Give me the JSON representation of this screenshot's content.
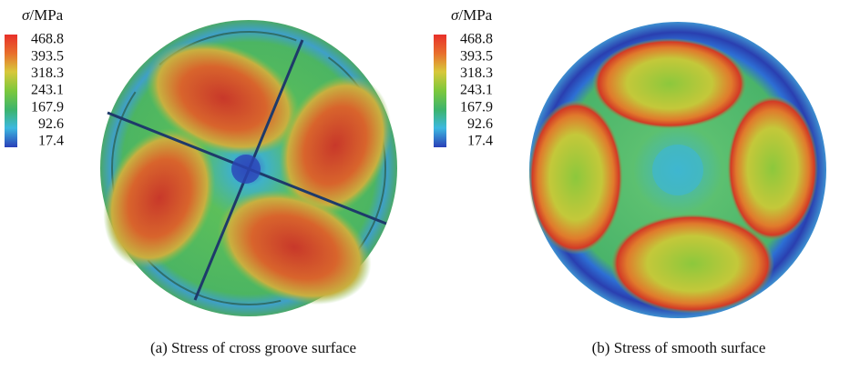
{
  "panels": [
    {
      "legend": {
        "symbol": "σ",
        "unit": "/MPa",
        "ticks": [
          468.8,
          393.5,
          318.3,
          243.1,
          167.9,
          92.6,
          17.4
        ]
      },
      "caption": "(a) Stress of cross groove surface"
    },
    {
      "legend": {
        "symbol": "σ",
        "unit": "/MPa",
        "ticks": [
          468.8,
          393.5,
          318.3,
          243.1,
          167.9,
          92.6,
          17.4
        ]
      },
      "caption": "(b) Stress of smooth surface"
    }
  ]
}
